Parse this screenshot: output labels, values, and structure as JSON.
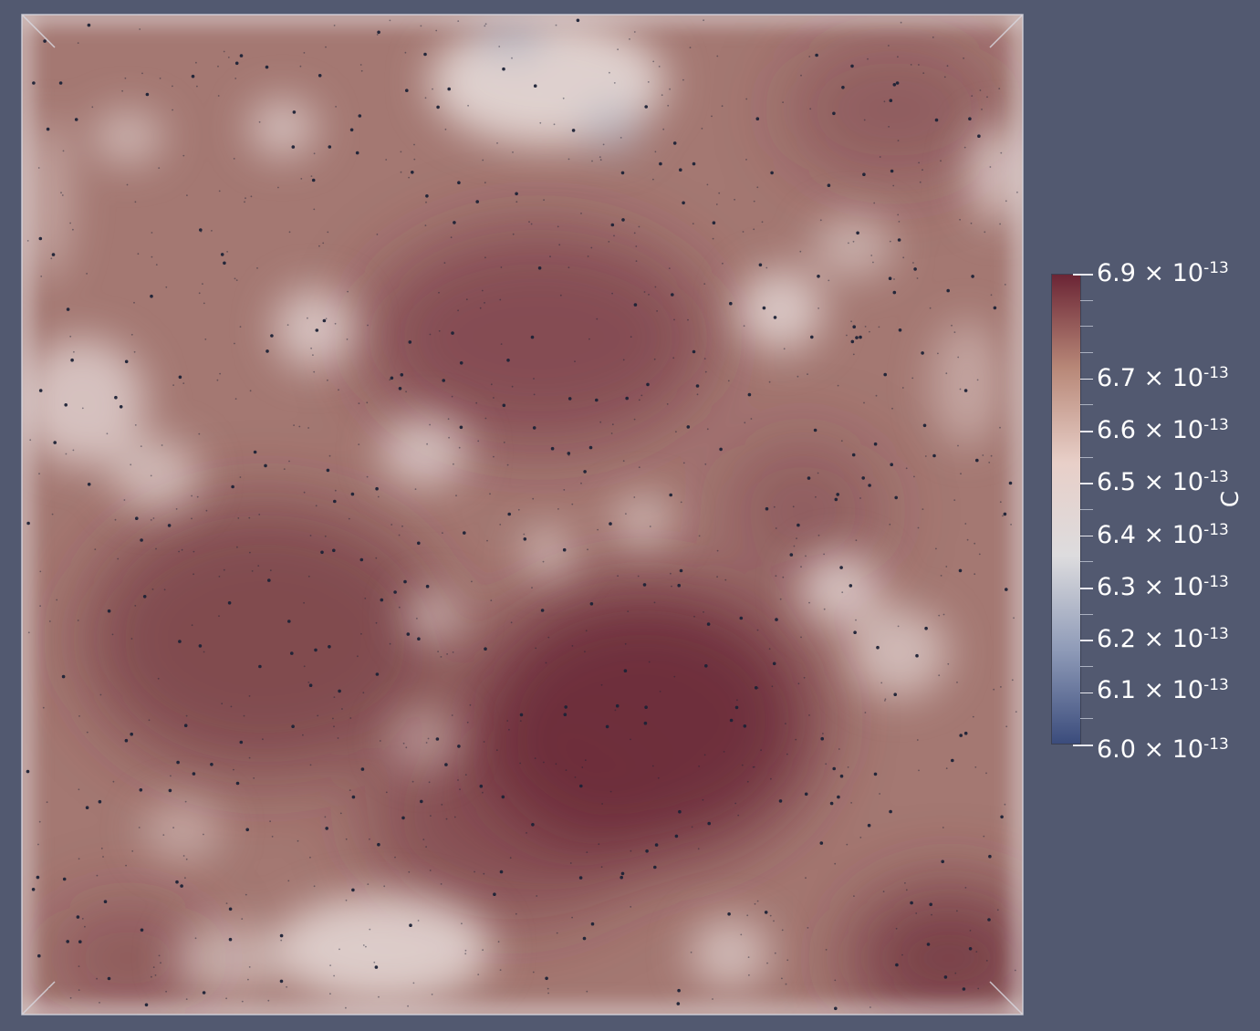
{
  "colorbar": {
    "title": "C",
    "labels": [
      {
        "mantissa": "6.9",
        "sep": " × 10",
        "exp": "-13",
        "value": 6.9e-13,
        "style": "endpoint"
      },
      {
        "mantissa": "6.7",
        "sep": " × 10",
        "exp": "-13",
        "value": 6.7e-13,
        "style": "major"
      },
      {
        "mantissa": "6.6",
        "sep": " × 10",
        "exp": "-13",
        "value": 6.6e-13,
        "style": "major"
      },
      {
        "mantissa": "6.5",
        "sep": " × 10",
        "exp": "-13",
        "value": 6.5e-13,
        "style": "major"
      },
      {
        "mantissa": "6.4",
        "sep": " × 10",
        "exp": "-13",
        "value": 6.4e-13,
        "style": "major"
      },
      {
        "mantissa": "6.3",
        "sep": " × 10",
        "exp": "-13",
        "value": 6.3e-13,
        "style": "major"
      },
      {
        "mantissa": "6.2",
        "sep": " × 10",
        "exp": "-13",
        "value": 6.2e-13,
        "style": "major"
      },
      {
        "mantissa": "6.1",
        "sep": " × 10",
        "exp": "-13",
        "value": 6.1e-13,
        "style": "major"
      },
      {
        "mantissa": "6.0",
        "sep": " × 10",
        "exp": "-13",
        "value": 6e-13,
        "style": "endpoint"
      }
    ],
    "range": [
      6e-13,
      6.9e-13
    ],
    "colormap": [
      "#3b4c7c",
      "#8f9bb8",
      "#dddcde",
      "#e8cfc8",
      "#b88878",
      "#6b2535"
    ]
  },
  "colors": {
    "background": "#525970",
    "field_base": "#a47872",
    "field_dark": "#6b2b38",
    "field_light": "#e6dad8",
    "field_blue": "#aeb2c2",
    "particles": "#1c2236"
  }
}
